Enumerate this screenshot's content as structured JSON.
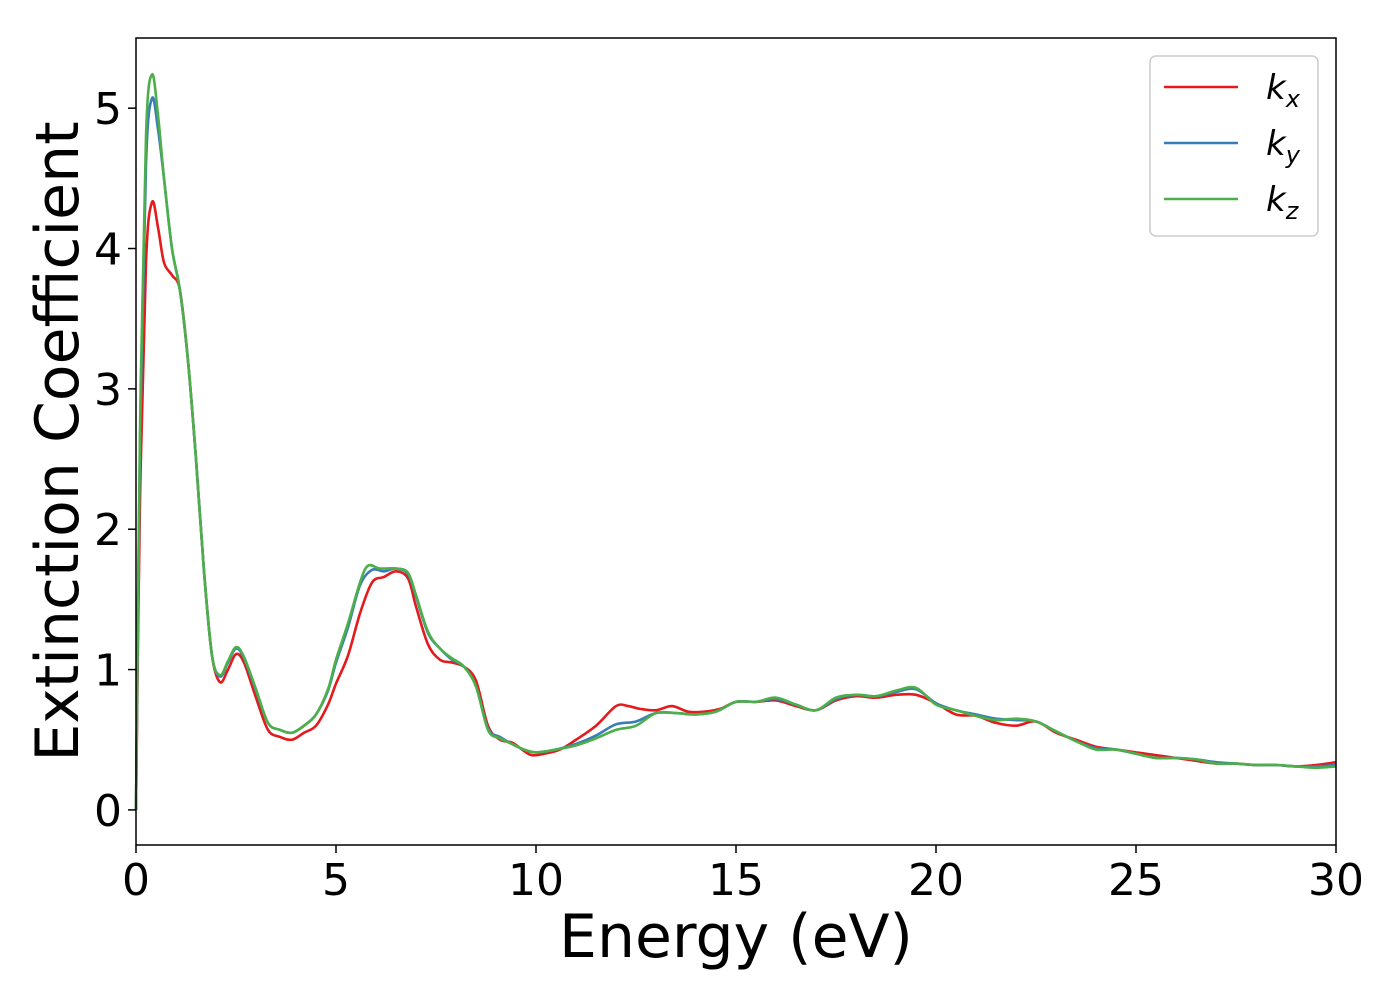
{
  "chart_data": {
    "type": "line",
    "title": "",
    "xlabel": "Energy (eV)",
    "ylabel": "Extinction Coefficient",
    "xlim": [
      0,
      30
    ],
    "ylim": [
      -0.25,
      5.5
    ],
    "xticks": [
      0,
      5,
      10,
      15,
      20,
      25,
      30
    ],
    "xtick_labels": [
      "0",
      "5",
      "10",
      "15",
      "20",
      "25",
      "30"
    ],
    "yticks": [
      0,
      1,
      2,
      3,
      4,
      5
    ],
    "ytick_labels": [
      "0",
      "1",
      "2",
      "3",
      "4",
      "5"
    ],
    "grid": false,
    "legend_position": "top-right",
    "series": [
      {
        "name": "k",
        "subscript": "x",
        "color": "#e41a1c",
        "points": [
          [
            0,
            0
          ],
          [
            0.1,
            2.2
          ],
          [
            0.25,
            3.9
          ],
          [
            0.4,
            4.33
          ],
          [
            0.55,
            4.15
          ],
          [
            0.7,
            3.9
          ],
          [
            0.9,
            3.81
          ],
          [
            1.1,
            3.7
          ],
          [
            1.3,
            3.2
          ],
          [
            1.5,
            2.5
          ],
          [
            1.7,
            1.7
          ],
          [
            1.9,
            1.1
          ],
          [
            2.1,
            0.91
          ],
          [
            2.3,
            1.0
          ],
          [
            2.5,
            1.11
          ],
          [
            2.7,
            1.05
          ],
          [
            3.0,
            0.8
          ],
          [
            3.3,
            0.57
          ],
          [
            3.6,
            0.52
          ],
          [
            3.9,
            0.5
          ],
          [
            4.2,
            0.55
          ],
          [
            4.5,
            0.6
          ],
          [
            4.8,
            0.75
          ],
          [
            5.0,
            0.9
          ],
          [
            5.3,
            1.1
          ],
          [
            5.6,
            1.4
          ],
          [
            5.9,
            1.62
          ],
          [
            6.2,
            1.66
          ],
          [
            6.5,
            1.7
          ],
          [
            6.8,
            1.65
          ],
          [
            7.0,
            1.45
          ],
          [
            7.3,
            1.18
          ],
          [
            7.6,
            1.07
          ],
          [
            7.9,
            1.05
          ],
          [
            8.2,
            1.02
          ],
          [
            8.5,
            0.92
          ],
          [
            8.8,
            0.6
          ],
          [
            9.1,
            0.5
          ],
          [
            9.4,
            0.48
          ],
          [
            9.7,
            0.42
          ],
          [
            9.9,
            0.39
          ],
          [
            10.2,
            0.4
          ],
          [
            10.6,
            0.43
          ],
          [
            11.0,
            0.5
          ],
          [
            11.5,
            0.6
          ],
          [
            12.0,
            0.74
          ],
          [
            12.3,
            0.74
          ],
          [
            12.6,
            0.72
          ],
          [
            13.0,
            0.71
          ],
          [
            13.4,
            0.74
          ],
          [
            13.8,
            0.7
          ],
          [
            14.2,
            0.7
          ],
          [
            14.6,
            0.72
          ],
          [
            15.0,
            0.77
          ],
          [
            15.5,
            0.77
          ],
          [
            16.0,
            0.78
          ],
          [
            16.5,
            0.74
          ],
          [
            17.0,
            0.71
          ],
          [
            17.5,
            0.78
          ],
          [
            18.0,
            0.81
          ],
          [
            18.5,
            0.8
          ],
          [
            19.0,
            0.82
          ],
          [
            19.5,
            0.82
          ],
          [
            20.0,
            0.76
          ],
          [
            20.5,
            0.68
          ],
          [
            21.0,
            0.67
          ],
          [
            21.5,
            0.62
          ],
          [
            22.0,
            0.6
          ],
          [
            22.5,
            0.63
          ],
          [
            23.0,
            0.55
          ],
          [
            23.5,
            0.5
          ],
          [
            24.0,
            0.45
          ],
          [
            24.5,
            0.43
          ],
          [
            25.0,
            0.41
          ],
          [
            25.5,
            0.39
          ],
          [
            26.0,
            0.37
          ],
          [
            26.5,
            0.35
          ],
          [
            27.0,
            0.33
          ],
          [
            27.5,
            0.33
          ],
          [
            28.0,
            0.32
          ],
          [
            28.5,
            0.32
          ],
          [
            29.0,
            0.31
          ],
          [
            29.5,
            0.32
          ],
          [
            30.0,
            0.34
          ]
        ]
      },
      {
        "name": "k",
        "subscript": "y",
        "color": "#377eb8",
        "points": [
          [
            0,
            0
          ],
          [
            0.1,
            2.6
          ],
          [
            0.25,
            4.6
          ],
          [
            0.4,
            5.07
          ],
          [
            0.55,
            4.85
          ],
          [
            0.7,
            4.5
          ],
          [
            0.9,
            4.0
          ],
          [
            1.1,
            3.7
          ],
          [
            1.3,
            3.2
          ],
          [
            1.5,
            2.5
          ],
          [
            1.7,
            1.7
          ],
          [
            1.9,
            1.1
          ],
          [
            2.1,
            0.95
          ],
          [
            2.3,
            1.05
          ],
          [
            2.5,
            1.15
          ],
          [
            2.7,
            1.08
          ],
          [
            3.0,
            0.85
          ],
          [
            3.3,
            0.62
          ],
          [
            3.6,
            0.57
          ],
          [
            3.9,
            0.55
          ],
          [
            4.2,
            0.6
          ],
          [
            4.5,
            0.68
          ],
          [
            4.8,
            0.85
          ],
          [
            5.0,
            1.05
          ],
          [
            5.3,
            1.3
          ],
          [
            5.6,
            1.6
          ],
          [
            5.9,
            1.71
          ],
          [
            6.2,
            1.7
          ],
          [
            6.5,
            1.72
          ],
          [
            6.8,
            1.68
          ],
          [
            7.0,
            1.52
          ],
          [
            7.3,
            1.26
          ],
          [
            7.6,
            1.15
          ],
          [
            7.9,
            1.07
          ],
          [
            8.2,
            1.02
          ],
          [
            8.5,
            0.88
          ],
          [
            8.8,
            0.58
          ],
          [
            9.1,
            0.52
          ],
          [
            9.4,
            0.47
          ],
          [
            9.7,
            0.43
          ],
          [
            10.0,
            0.41
          ],
          [
            10.5,
            0.43
          ],
          [
            11.0,
            0.47
          ],
          [
            11.5,
            0.53
          ],
          [
            12.0,
            0.61
          ],
          [
            12.5,
            0.63
          ],
          [
            13.0,
            0.69
          ],
          [
            13.5,
            0.69
          ],
          [
            14.0,
            0.68
          ],
          [
            14.5,
            0.7
          ],
          [
            15.0,
            0.77
          ],
          [
            15.5,
            0.77
          ],
          [
            16.0,
            0.79
          ],
          [
            16.5,
            0.75
          ],
          [
            17.0,
            0.71
          ],
          [
            17.5,
            0.79
          ],
          [
            18.0,
            0.82
          ],
          [
            18.5,
            0.81
          ],
          [
            19.0,
            0.84
          ],
          [
            19.5,
            0.86
          ],
          [
            20.0,
            0.76
          ],
          [
            20.5,
            0.71
          ],
          [
            21.0,
            0.68
          ],
          [
            21.5,
            0.65
          ],
          [
            22.0,
            0.64
          ],
          [
            22.5,
            0.63
          ],
          [
            23.0,
            0.56
          ],
          [
            23.5,
            0.49
          ],
          [
            24.0,
            0.44
          ],
          [
            24.5,
            0.43
          ],
          [
            25.0,
            0.4
          ],
          [
            25.5,
            0.37
          ],
          [
            26.0,
            0.37
          ],
          [
            26.5,
            0.36
          ],
          [
            27.0,
            0.34
          ],
          [
            27.5,
            0.33
          ],
          [
            28.0,
            0.32
          ],
          [
            28.5,
            0.32
          ],
          [
            29.0,
            0.31
          ],
          [
            29.5,
            0.31
          ],
          [
            30.0,
            0.32
          ]
        ]
      },
      {
        "name": "k",
        "subscript": "z",
        "color": "#4daf4a",
        "points": [
          [
            0,
            0
          ],
          [
            0.1,
            2.7
          ],
          [
            0.25,
            4.8
          ],
          [
            0.4,
            5.24
          ],
          [
            0.55,
            4.95
          ],
          [
            0.7,
            4.5
          ],
          [
            0.9,
            4.0
          ],
          [
            1.1,
            3.7
          ],
          [
            1.3,
            3.2
          ],
          [
            1.5,
            2.5
          ],
          [
            1.7,
            1.7
          ],
          [
            1.9,
            1.1
          ],
          [
            2.1,
            0.96
          ],
          [
            2.3,
            1.06
          ],
          [
            2.5,
            1.16
          ],
          [
            2.7,
            1.09
          ],
          [
            3.0,
            0.86
          ],
          [
            3.3,
            0.62
          ],
          [
            3.6,
            0.57
          ],
          [
            3.9,
            0.55
          ],
          [
            4.2,
            0.6
          ],
          [
            4.5,
            0.68
          ],
          [
            4.8,
            0.86
          ],
          [
            5.0,
            1.07
          ],
          [
            5.3,
            1.33
          ],
          [
            5.6,
            1.62
          ],
          [
            5.8,
            1.74
          ],
          [
            6.1,
            1.72
          ],
          [
            6.5,
            1.72
          ],
          [
            6.8,
            1.69
          ],
          [
            7.0,
            1.53
          ],
          [
            7.3,
            1.27
          ],
          [
            7.6,
            1.15
          ],
          [
            7.9,
            1.08
          ],
          [
            8.2,
            1.02
          ],
          [
            8.5,
            0.88
          ],
          [
            8.8,
            0.57
          ],
          [
            9.1,
            0.51
          ],
          [
            9.4,
            0.47
          ],
          [
            9.7,
            0.43
          ],
          [
            10.0,
            0.41
          ],
          [
            10.5,
            0.43
          ],
          [
            11.0,
            0.46
          ],
          [
            11.5,
            0.51
          ],
          [
            12.0,
            0.57
          ],
          [
            12.5,
            0.6
          ],
          [
            13.0,
            0.69
          ],
          [
            13.5,
            0.69
          ],
          [
            14.0,
            0.68
          ],
          [
            14.5,
            0.7
          ],
          [
            15.0,
            0.77
          ],
          [
            15.5,
            0.77
          ],
          [
            16.0,
            0.8
          ],
          [
            16.5,
            0.75
          ],
          [
            17.0,
            0.71
          ],
          [
            17.5,
            0.8
          ],
          [
            18.0,
            0.82
          ],
          [
            18.5,
            0.81
          ],
          [
            19.0,
            0.85
          ],
          [
            19.5,
            0.87
          ],
          [
            20.0,
            0.75
          ],
          [
            20.5,
            0.71
          ],
          [
            21.0,
            0.67
          ],
          [
            21.5,
            0.64
          ],
          [
            22.0,
            0.65
          ],
          [
            22.5,
            0.63
          ],
          [
            23.0,
            0.56
          ],
          [
            23.5,
            0.49
          ],
          [
            24.0,
            0.43
          ],
          [
            24.5,
            0.43
          ],
          [
            25.0,
            0.4
          ],
          [
            25.5,
            0.37
          ],
          [
            26.0,
            0.37
          ],
          [
            26.5,
            0.36
          ],
          [
            27.0,
            0.33
          ],
          [
            27.5,
            0.33
          ],
          [
            28.0,
            0.32
          ],
          [
            28.5,
            0.32
          ],
          [
            29.0,
            0.31
          ],
          [
            29.5,
            0.3
          ],
          [
            30.0,
            0.31
          ]
        ]
      }
    ]
  }
}
